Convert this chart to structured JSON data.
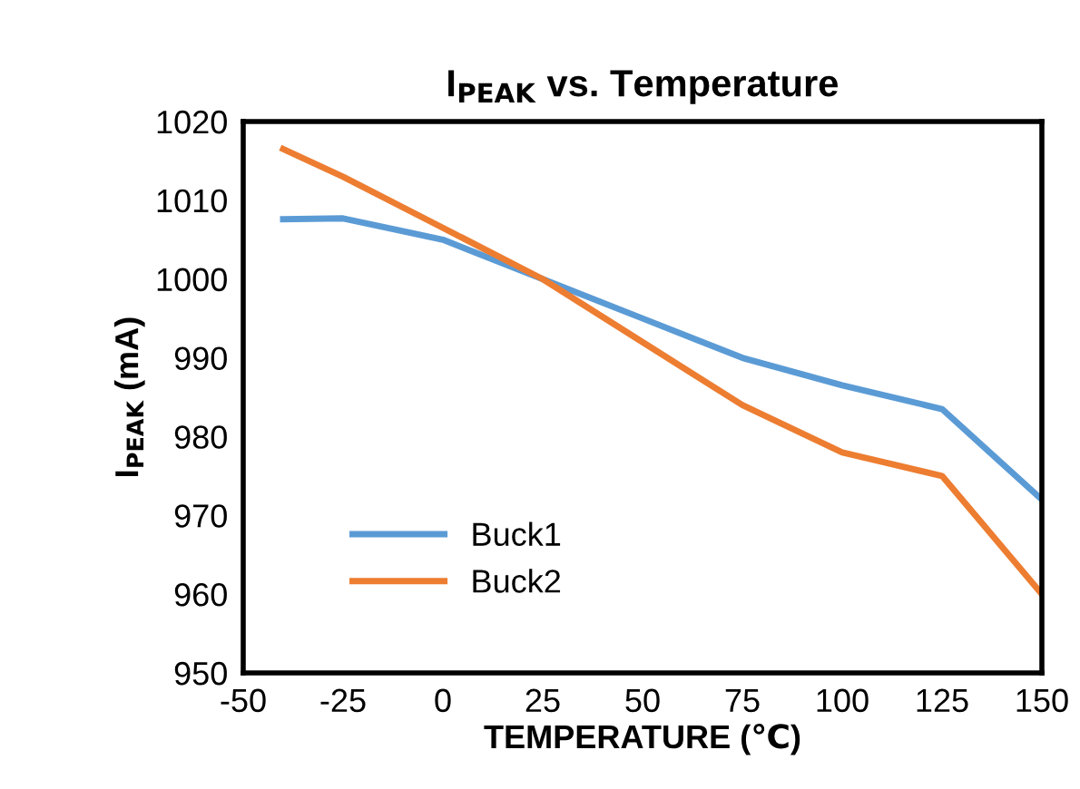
{
  "chart_data": {
    "type": "line",
    "title": "I$_{PEAK}$ vs. Temperature",
    "xlabel": "TEMPERATURE (℃)",
    "ylabel": "I$_{PEAK}$ (mA)",
    "x": [
      -40,
      -25,
      0,
      25,
      50,
      75,
      100,
      125,
      150
    ],
    "series": [
      {
        "name": "Buck1",
        "color": "#5b9bd5",
        "values": [
          1007.6,
          1007.7,
          1005,
          1000,
          995,
          990,
          986.5,
          983.5,
          972
        ]
      },
      {
        "name": "Buck2",
        "color": "#ed7d31",
        "values": [
          1016.5,
          1013,
          1006.5,
          1000,
          992,
          984,
          978,
          975,
          960
        ]
      }
    ],
    "xlim": [
      -50,
      150
    ],
    "xticks": [
      -50,
      -25,
      0,
      25,
      50,
      75,
      100,
      125,
      150
    ],
    "ylim": [
      950,
      1020
    ],
    "yticks": [
      950,
      960,
      970,
      980,
      990,
      1000,
      1010,
      1020
    ],
    "grid": false,
    "legend": "bottom left",
    "marker": "none",
    "line_style": "solid"
  }
}
